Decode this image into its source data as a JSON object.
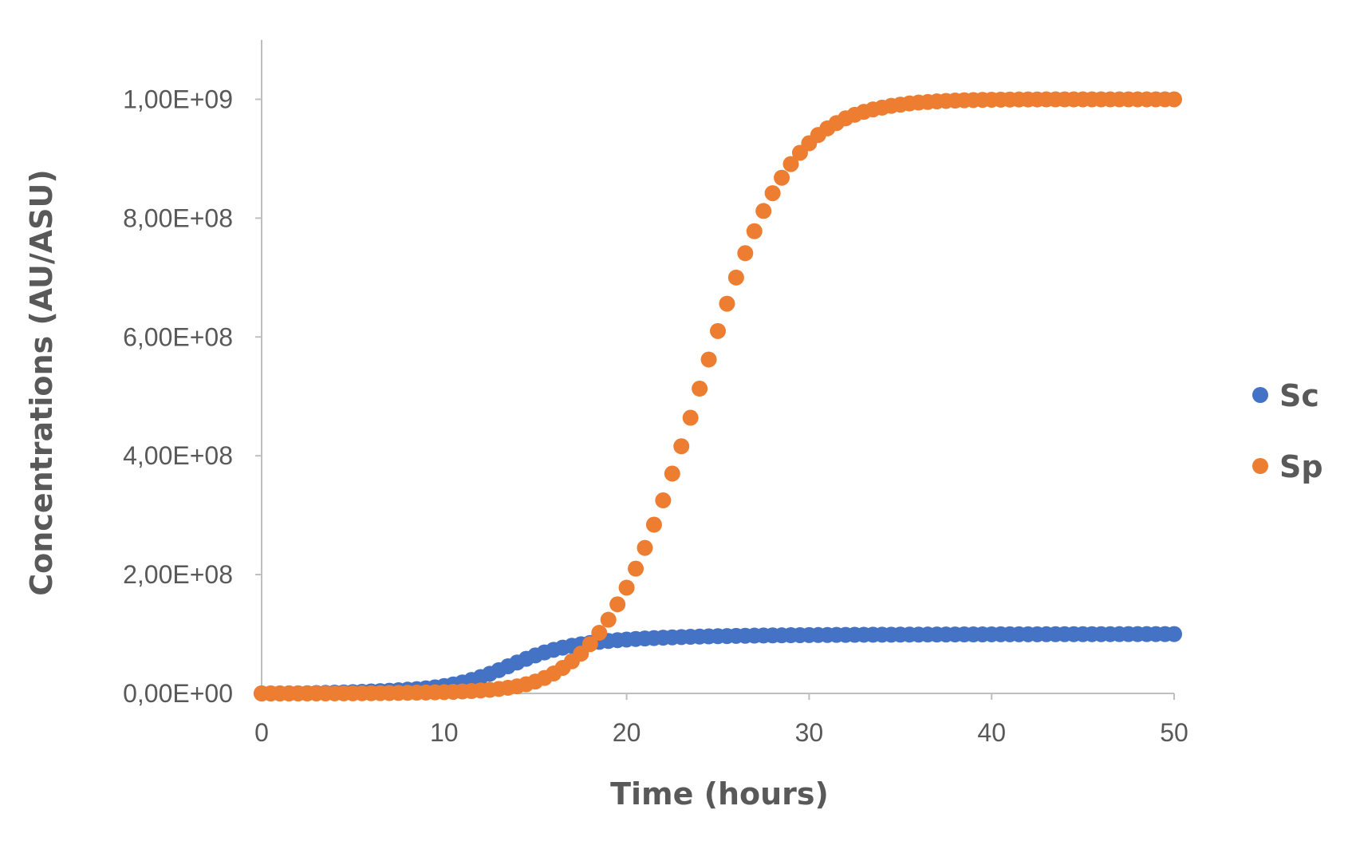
{
  "chart_data": {
    "type": "scatter",
    "title": "",
    "xlabel": "Time (hours)",
    "ylabel": "Concentrations (AU/ASU)",
    "xlim": [
      0,
      50
    ],
    "ylim": [
      0,
      1100000000
    ],
    "x_ticks": [
      0,
      10,
      20,
      30,
      40,
      50
    ],
    "x_tick_labels": [
      "0",
      "10",
      "20",
      "30",
      "40",
      "50"
    ],
    "y_ticks": [
      0,
      200000000,
      400000000,
      600000000,
      800000000,
      1000000000
    ],
    "y_tick_labels": [
      "0,00E+00",
      "2,00E+08",
      "4,00E+08",
      "6,00E+08",
      "8,00E+08",
      "1,00E+09"
    ],
    "grid": false,
    "legend_position": "right",
    "x": [
      0,
      0.5,
      1,
      1.5,
      2,
      2.5,
      3,
      3.5,
      4,
      4.5,
      5,
      5.5,
      6,
      6.5,
      7,
      7.5,
      8,
      8.5,
      9,
      9.5,
      10,
      10.5,
      11,
      11.5,
      12,
      12.5,
      13,
      13.5,
      14,
      14.5,
      15,
      15.5,
      16,
      16.5,
      17,
      17.5,
      18,
      18.5,
      19,
      19.5,
      20,
      20.5,
      21,
      21.5,
      22,
      22.5,
      23,
      23.5,
      24,
      24.5,
      25,
      25.5,
      26,
      26.5,
      27,
      27.5,
      28,
      28.5,
      29,
      29.5,
      30,
      30.5,
      31,
      31.5,
      32,
      32.5,
      33,
      33.5,
      34,
      34.5,
      35,
      35.5,
      36,
      36.5,
      37,
      37.5,
      38,
      38.5,
      39,
      39.5,
      40,
      40.5,
      41,
      41.5,
      42,
      42.5,
      43,
      43.5,
      44,
      44.5,
      45,
      45.5,
      46,
      46.5,
      47,
      47.5,
      48,
      48.5,
      49,
      49.5,
      50
    ],
    "series": [
      {
        "name": "Sc",
        "color": "#4472C4",
        "values": [
          0,
          21000,
          44000,
          92000,
          190000,
          360000,
          610000,
          930000,
          1300000,
          1700000,
          2200000,
          2700000,
          3300000,
          3900000,
          4600000,
          5400000,
          6300000,
          7300000,
          8600000,
          10300000,
          12400000,
          15100000,
          18500000,
          22600000,
          27500000,
          33000000,
          39200000,
          45600000,
          52000000,
          58200000,
          63900000,
          69000000,
          73400000,
          77100000,
          80200000,
          82800000,
          85000000,
          86800000,
          88300000,
          89600000,
          90700000,
          91700000,
          92500000,
          93200000,
          93800000,
          94400000,
          94900000,
          95300000,
          95700000,
          96000000,
          96300000,
          96600000,
          96900000,
          97100000,
          97300000,
          97500000,
          97700000,
          97800000,
          98000000,
          98100000,
          98200000,
          98300000,
          98400000,
          98500000,
          98600000,
          98700000,
          98800000,
          98850000,
          98900000,
          98950000,
          99000000,
          99050000,
          99100000,
          99150000,
          99200000,
          99250000,
          99300000,
          99340000,
          99380000,
          99420000,
          99460000,
          99500000,
          99530000,
          99560000,
          99590000,
          99620000,
          99650000,
          99680000,
          99700000,
          99720000,
          99740000,
          99760000,
          99780000,
          99800000,
          99820000,
          99840000,
          99860000,
          99870000,
          99880000,
          99890000,
          99900000
        ]
      },
      {
        "name": "Sp",
        "color": "#ED7D31",
        "values": [
          0,
          0,
          1000,
          2000,
          5000,
          10000,
          20000,
          40000,
          70000,
          120000,
          190000,
          280000,
          400000,
          540000,
          700000,
          880000,
          1080000,
          1300000,
          1550000,
          1820000,
          2200000,
          2700000,
          3300000,
          4000000,
          5000000,
          6000000,
          7500000,
          9500000,
          12000000,
          15500000,
          20000000,
          26000000,
          33500000,
          43000000,
          54000000,
          67000000,
          83000000,
          102000000,
          124000000,
          150000000,
          178000000,
          210000000,
          245000000,
          284000000,
          325000000,
          370000000,
          416000000,
          464000000,
          513000000,
          562000000,
          610000000,
          656000000,
          700000000,
          741000000,
          778000000,
          812000000,
          842000000,
          868000000,
          891000000,
          910000000,
          926000000,
          940000000,
          951000000,
          960000000,
          968000000,
          974000000,
          979000000,
          983000000,
          986000000,
          989000000,
          991000000,
          993000000,
          994500000,
          995500000,
          996500000,
          997300000,
          997900000,
          998400000,
          998800000,
          999100000,
          999300000,
          999500000,
          999600000,
          999700000,
          999780000,
          999840000,
          999880000,
          999910000,
          999930000,
          999950000,
          999960000,
          999970000,
          999980000,
          999985000,
          999990000,
          999993000,
          999995000,
          999997000,
          999998000,
          999999000,
          1000000000
        ]
      }
    ]
  }
}
